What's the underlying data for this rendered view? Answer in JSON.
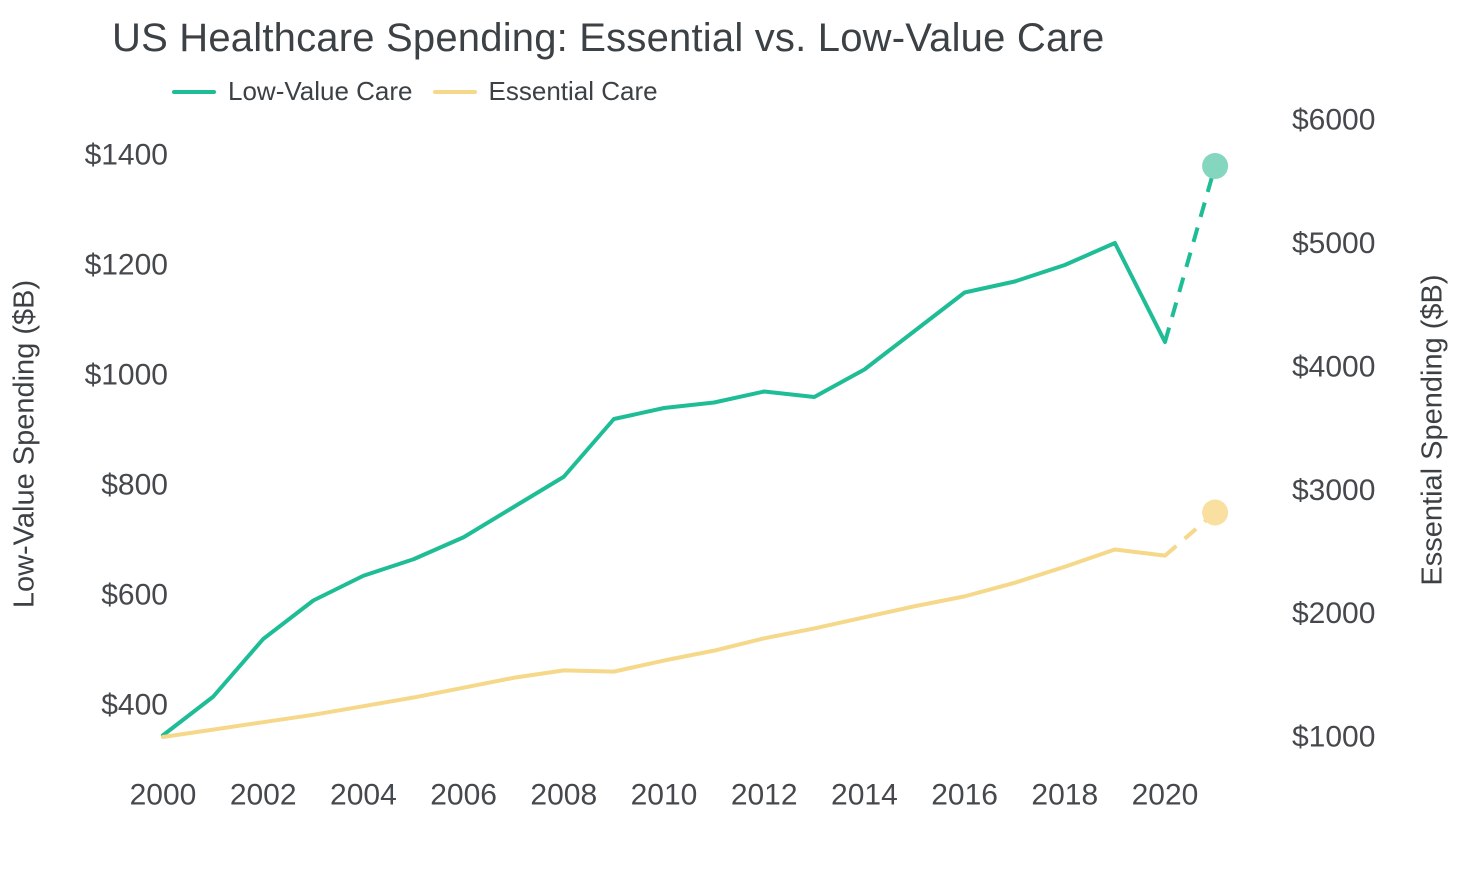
{
  "header": {
    "title": "US Healthcare Spending: Essential vs. Low-Value Care"
  },
  "legend": {
    "position": "top-left",
    "items": [
      {
        "label": "Low-Value Care",
        "color": "#1fbd96"
      },
      {
        "label": "Essential Care",
        "color": "#f6d88a"
      }
    ]
  },
  "chart_data": {
    "type": "line",
    "title": "US Healthcare Spending: Essential vs. Low-Value Care",
    "grid": false,
    "legend_position": "top-left",
    "x": [
      2000,
      2001,
      2002,
      2003,
      2004,
      2005,
      2006,
      2007,
      2008,
      2009,
      2010,
      2011,
      2012,
      2013,
      2014,
      2015,
      2016,
      2017,
      2018,
      2019,
      2020,
      2021
    ],
    "x_tick_labels": [
      "2000",
      "2002",
      "2004",
      "2006",
      "2008",
      "2010",
      "2012",
      "2014",
      "2016",
      "2018",
      "2020"
    ],
    "series": [
      {
        "name": "Low-Value Care",
        "axis": "left",
        "color": "#1fbd96",
        "marker_color": "#85d6be",
        "line_style": "solid",
        "last_segment_dashed": true,
        "end_marker": true,
        "values": [
          345,
          415,
          520,
          590,
          635,
          665,
          705,
          760,
          815,
          920,
          940,
          950,
          970,
          960,
          1010,
          1080,
          1150,
          1170,
          1200,
          1240,
          1060,
          1380
        ]
      },
      {
        "name": "Essential Care",
        "axis": "right",
        "color": "#f6d88a",
        "marker_color": "#f9e0a0",
        "line_style": "solid",
        "last_segment_dashed": true,
        "end_marker": true,
        "values": [
          1000,
          1060,
          1120,
          1180,
          1250,
          1320,
          1400,
          1480,
          1540,
          1530,
          1620,
          1700,
          1800,
          1880,
          1970,
          2060,
          2140,
          2250,
          2380,
          2520,
          2470,
          2820
        ]
      }
    ],
    "axes": {
      "left": {
        "label": "Low-Value Spending ($B)",
        "ticks": [
          400,
          600,
          800,
          1000,
          1200,
          1400
        ],
        "tick_labels": [
          "$400",
          "$600",
          "$800",
          "$1000",
          "$1200",
          "$1400"
        ],
        "range": [
          300,
          1480
        ]
      },
      "right": {
        "label": "Essential Spending ($B)",
        "ticks": [
          1000,
          2000,
          3000,
          4000,
          5000,
          6000
        ],
        "tick_labels": [
          "$1000",
          "$2000",
          "$3000",
          "$4000",
          "$5000",
          "$6000"
        ],
        "range": [
          850,
          6100
        ]
      },
      "x": {
        "range": [
          2000,
          2021
        ]
      }
    }
  }
}
